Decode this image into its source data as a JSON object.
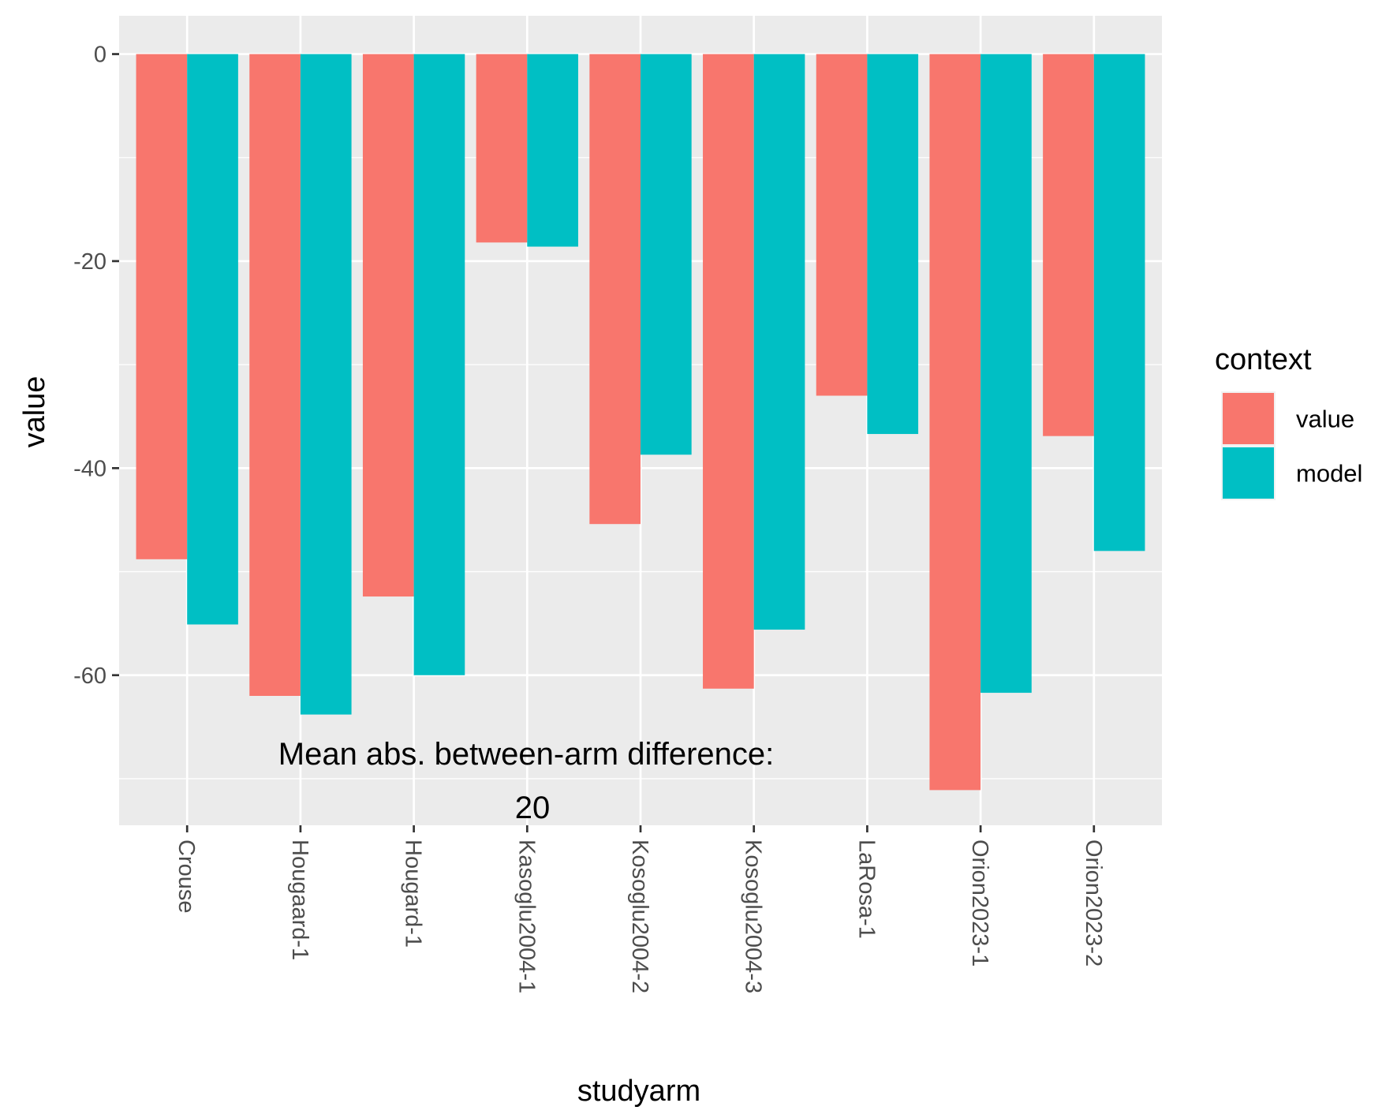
{
  "chart_data": {
    "type": "bar",
    "categories": [
      "Crouse",
      "Hougaard-1",
      "Hougard-1",
      "Kasoglu2004-1",
      "Kosoglu2004-2",
      "Kosoglu2004-3",
      "LaRosa-1",
      "Orion2023-1",
      "Orion2023-2"
    ],
    "series": [
      {
        "name": "value",
        "color": "#F8766D",
        "values": [
          -48.8,
          -62.0,
          -52.4,
          -18.2,
          -45.4,
          -61.3,
          -33.0,
          -71.1,
          -36.9
        ]
      },
      {
        "name": "model",
        "color": "#00BFC4",
        "values": [
          -55.1,
          -63.8,
          -60.0,
          -18.6,
          -38.7,
          -55.6,
          -36.7,
          -61.7,
          -48.0
        ]
      }
    ],
    "xlabel": "studyarm",
    "ylabel": "value",
    "ylim": [
      -74.5,
      3.7
    ],
    "yticks": [
      0,
      -20,
      -40,
      -60
    ],
    "ytick_labels": [
      "0",
      "-20",
      "-40",
      "-60"
    ],
    "grid": true,
    "legend": {
      "title": "context",
      "placement": "right"
    },
    "annotation": {
      "line1": "Mean abs. between-arm difference:",
      "line2": "20"
    }
  }
}
